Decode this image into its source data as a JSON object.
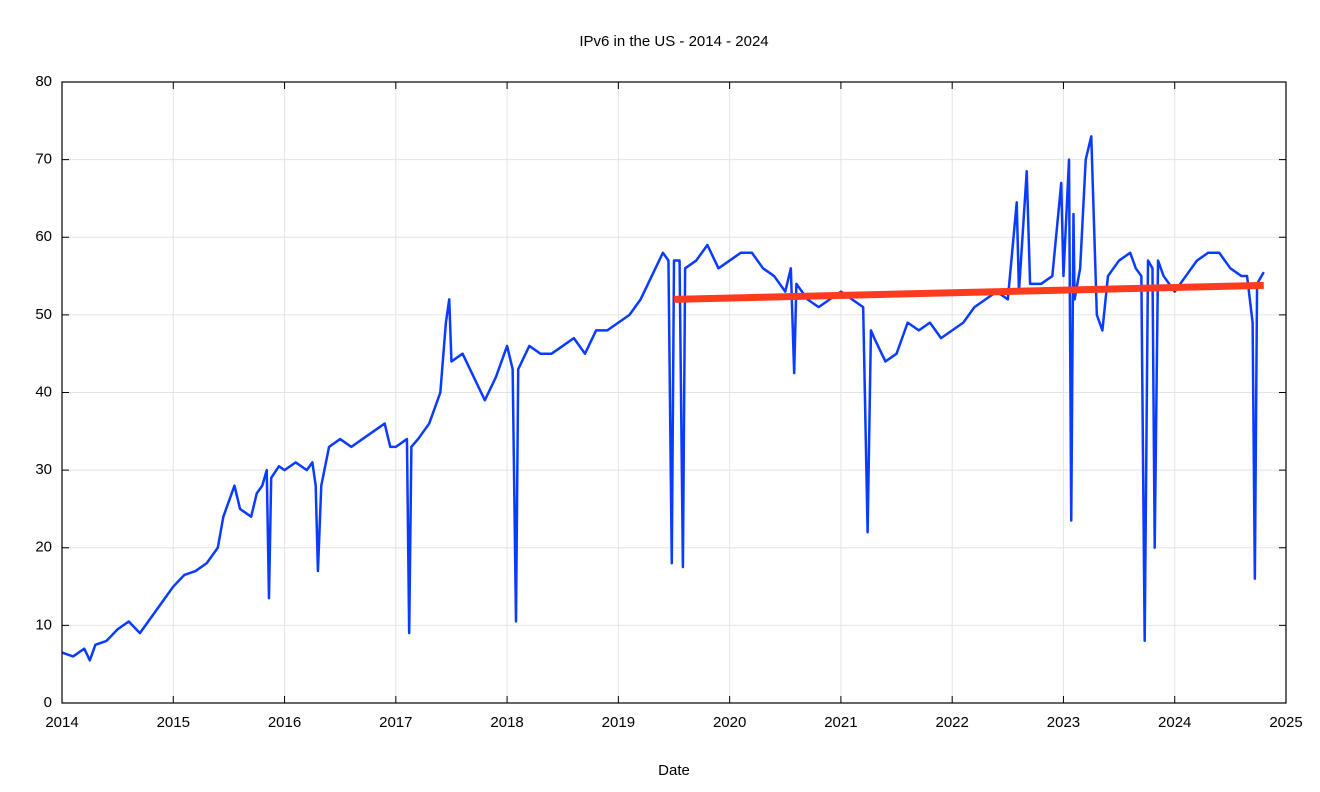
{
  "chart_data": {
    "type": "line",
    "title": "IPv6 in the US - 2014 - 2024",
    "xlabel": "Date",
    "xlim": [
      2014,
      2025
    ],
    "ylim": [
      0,
      80
    ],
    "xticks": [
      2014,
      2015,
      2016,
      2017,
      2018,
      2019,
      2020,
      2021,
      2022,
      2023,
      2024,
      2025
    ],
    "yticks": [
      0,
      10,
      20,
      30,
      40,
      50,
      60,
      70,
      80
    ],
    "grid": true,
    "series": [
      {
        "color": "#0a3cff",
        "x": [
          2014.0,
          2014.1,
          2014.2,
          2014.25,
          2014.3,
          2014.4,
          2014.5,
          2014.6,
          2014.7,
          2014.8,
          2014.9,
          2015.0,
          2015.1,
          2015.2,
          2015.3,
          2015.4,
          2015.45,
          2015.5,
          2015.55,
          2015.6,
          2015.7,
          2015.75,
          2015.8,
          2015.84,
          2015.86,
          2015.88,
          2015.95,
          2016.0,
          2016.1,
          2016.2,
          2016.25,
          2016.28,
          2016.3,
          2016.33,
          2016.4,
          2016.5,
          2016.6,
          2016.7,
          2016.8,
          2016.9,
          2016.95,
          2017.0,
          2017.1,
          2017.12,
          2017.14,
          2017.2,
          2017.3,
          2017.4,
          2017.45,
          2017.48,
          2017.5,
          2017.6,
          2017.7,
          2017.8,
          2017.9,
          2018.0,
          2018.05,
          2018.08,
          2018.1,
          2018.2,
          2018.3,
          2018.4,
          2018.5,
          2018.6,
          2018.7,
          2018.8,
          2018.9,
          2019.0,
          2019.1,
          2019.2,
          2019.3,
          2019.4,
          2019.45,
          2019.48,
          2019.5,
          2019.55,
          2019.58,
          2019.6,
          2019.7,
          2019.8,
          2019.9,
          2020.0,
          2020.1,
          2020.2,
          2020.3,
          2020.4,
          2020.5,
          2020.55,
          2020.58,
          2020.6,
          2020.7,
          2020.8,
          2020.9,
          2021.0,
          2021.1,
          2021.2,
          2021.24,
          2021.27,
          2021.3,
          2021.4,
          2021.5,
          2021.6,
          2021.7,
          2021.8,
          2021.9,
          2022.0,
          2022.1,
          2022.2,
          2022.3,
          2022.4,
          2022.5,
          2022.58,
          2022.6,
          2022.67,
          2022.7,
          2022.8,
          2022.9,
          2022.98,
          2023.0,
          2023.05,
          2023.07,
          2023.09,
          2023.1,
          2023.15,
          2023.2,
          2023.25,
          2023.3,
          2023.35,
          2023.4,
          2023.5,
          2023.6,
          2023.65,
          2023.7,
          2023.73,
          2023.76,
          2023.8,
          2023.82,
          2023.85,
          2023.9,
          2024.0,
          2024.1,
          2024.2,
          2024.3,
          2024.4,
          2024.5,
          2024.6,
          2024.65,
          2024.7,
          2024.72,
          2024.74,
          2024.8
        ],
        "values": [
          6.5,
          6,
          7,
          5.5,
          7.5,
          8,
          9.5,
          10.5,
          9,
          11,
          13,
          15,
          16.5,
          17,
          18,
          20,
          24,
          26,
          28,
          25,
          24,
          27,
          28,
          30,
          13.5,
          29,
          30.5,
          30,
          31,
          30,
          31,
          28,
          17,
          28,
          33,
          34,
          33,
          34,
          35,
          36,
          33,
          33,
          34,
          9,
          33,
          34,
          36,
          40,
          49,
          52,
          44,
          45,
          42,
          39,
          42,
          46,
          43,
          10.5,
          43,
          46,
          45,
          45,
          46,
          47,
          45,
          48,
          48,
          49,
          50,
          52,
          55,
          58,
          57,
          18,
          57,
          57,
          17.5,
          56,
          57,
          59,
          56,
          57,
          58,
          58,
          56,
          55,
          53,
          56,
          42.5,
          54,
          52,
          51,
          52,
          53,
          52,
          51,
          22,
          48,
          47,
          44,
          45,
          49,
          48,
          49,
          47,
          48,
          49,
          51,
          52,
          53,
          52,
          64.5,
          53,
          68.5,
          54,
          54,
          55,
          67,
          55,
          70,
          23.5,
          63,
          52,
          56,
          70,
          73,
          50,
          48,
          55,
          57,
          58,
          56,
          55,
          8,
          57,
          56,
          20,
          57,
          55,
          53,
          55,
          57,
          58,
          58,
          56,
          55,
          55,
          49,
          16,
          54,
          55.5
        ]
      },
      {
        "color": "#ff3b1f",
        "x": [
          2019.5,
          2024.8
        ],
        "values": [
          52,
          53.8
        ]
      }
    ]
  }
}
